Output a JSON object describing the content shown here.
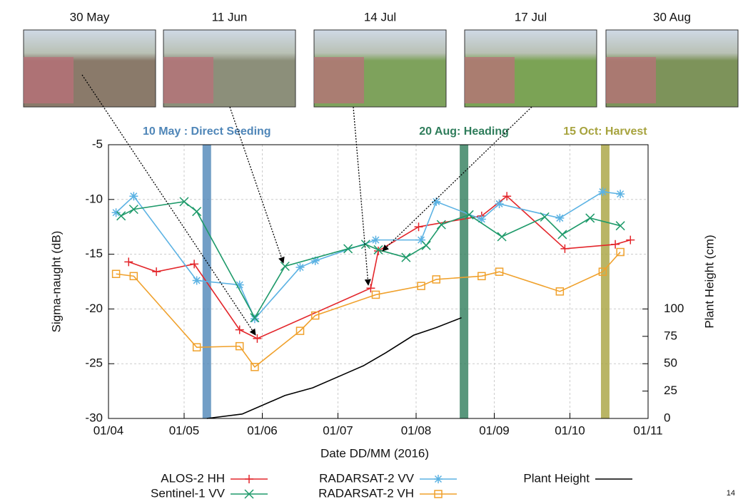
{
  "chart_data": {
    "type": "line",
    "x_label": "Date DD/MM (2016)",
    "y_label": "Sigma-naught (dB)",
    "y2_label": "Plant Height (cm)",
    "xlim": [
      "01/04",
      "01/11"
    ],
    "xticks": [
      "01/04",
      "01/05",
      "01/06",
      "01/07",
      "01/08",
      "01/09",
      "01/10",
      "01/11"
    ],
    "ylim": [
      -30,
      -5
    ],
    "yticks": [
      -30,
      -25,
      -20,
      -15,
      -10,
      -5
    ],
    "y2lim": [
      0,
      250
    ],
    "y2ticks": [
      0,
      25,
      50,
      75,
      100
    ],
    "grid": true,
    "legend": "bottom",
    "page_number": "14",
    "photos": [
      {
        "label": "30 May",
        "tone": "#8a7a6a"
      },
      {
        "label": "11 Jun",
        "tone": "#8c8f7a"
      },
      {
        "label": "14 Jul",
        "tone": "#7ea25c"
      },
      {
        "label": "17 Jul",
        "tone": "#7ba355"
      },
      {
        "label": "30 Aug",
        "tone": "#7d935a"
      }
    ],
    "events": [
      {
        "date": "10/05",
        "label": "10 May : Direct Seeding",
        "color": "#4f86b8"
      },
      {
        "date": "20/08",
        "label": "20 Aug: Heading",
        "color": "#2f7d5b"
      },
      {
        "date": "15/10",
        "label": "15 Oct: Harvest",
        "color": "#a7a33e"
      }
    ],
    "series": [
      {
        "name": "ALOS-2 HH",
        "color": "#e3262b",
        "marker": "plus",
        "x": [
          "09/04",
          "20/04",
          "05/05",
          "23/05",
          "30/05",
          "14/07",
          "17/07",
          "02/08",
          "27/08",
          "06/09",
          "29/09",
          "19/10",
          "25/10"
        ],
        "values": [
          -15.7,
          -16.6,
          -15.9,
          -21.9,
          -22.7,
          -18.1,
          -14.7,
          -12.5,
          -11.5,
          -9.7,
          -14.5,
          -14.1,
          -13.7
        ]
      },
      {
        "name": "RADARSAT-2 VV",
        "color": "#5bb2e3",
        "marker": "star",
        "x": [
          "04/04",
          "11/04",
          "06/05",
          "23/05",
          "29/05",
          "16/06",
          "22/06",
          "16/07",
          "03/08",
          "09/08",
          "27/08",
          "03/09",
          "27/09",
          "14/10",
          "21/10"
        ],
        "values": [
          -11.2,
          -9.7,
          -17.4,
          -17.8,
          -20.9,
          -16.2,
          -15.6,
          -13.7,
          -13.7,
          -10.2,
          -11.8,
          -10.4,
          -11.7,
          -9.3,
          -9.5
        ]
      },
      {
        "name": "Sentinel-1 VV",
        "color": "#1e9a6a",
        "marker": "cross",
        "x": [
          "06/04",
          "11/04",
          "01/05",
          "06/05",
          "29/05",
          "10/06",
          "05/07",
          "12/07",
          "17/07",
          "28/07",
          "05/08",
          "11/08",
          "22/08",
          "04/09",
          "21/09",
          "28/09",
          "09/10",
          "21/10"
        ],
        "values": [
          -11.5,
          -10.9,
          -10.2,
          -11.1,
          -20.8,
          -16.1,
          -14.5,
          -14.1,
          -14.6,
          -15.3,
          -14.2,
          -12.3,
          -11.4,
          -13.4,
          -11.6,
          -13.2,
          -11.7,
          -12.4
        ]
      },
      {
        "name": "RADARSAT-2 VH",
        "color": "#f0a12c",
        "marker": "square",
        "x": [
          "04/04",
          "11/04",
          "06/05",
          "23/05",
          "29/05",
          "16/06",
          "22/06",
          "16/07",
          "03/08",
          "09/08",
          "27/08",
          "03/09",
          "27/09",
          "14/10",
          "21/10"
        ],
        "values": [
          -16.8,
          -17.0,
          -23.5,
          -23.4,
          -25.3,
          -22.0,
          -20.6,
          -18.7,
          -17.9,
          -17.3,
          -17.0,
          -16.6,
          -18.4,
          -16.6,
          -14.8
        ]
      },
      {
        "name": "Plant Height",
        "color": "#000000",
        "marker": "none",
        "axis": "y2",
        "x": [
          "10/05",
          "24/05",
          "10/06",
          "21/06",
          "03/07",
          "11/07",
          "20/07",
          "31/07",
          "09/08",
          "19/08"
        ],
        "values": [
          0,
          4,
          21,
          28,
          40,
          48,
          60,
          76,
          83,
          92
        ]
      }
    ]
  }
}
